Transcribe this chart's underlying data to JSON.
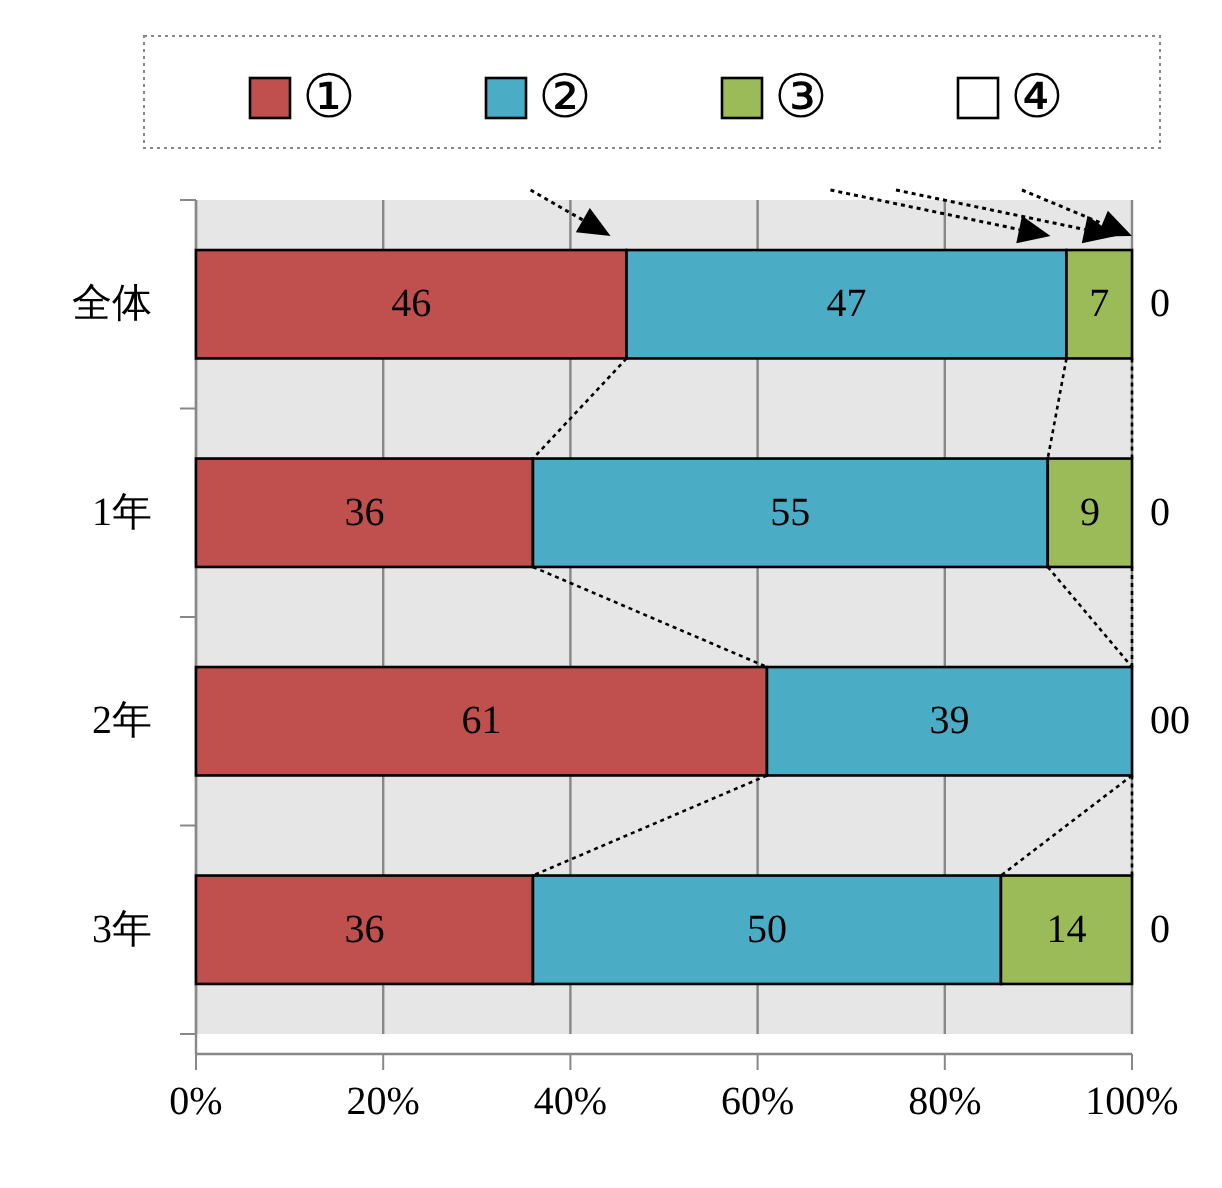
{
  "chart_data": {
    "type": "bar",
    "orientation": "horizontal",
    "stacked": true,
    "categories": [
      "全体",
      "1年",
      "2年",
      "3年"
    ],
    "series": [
      {
        "name": "①",
        "color": "#c0504d",
        "values": [
          46,
          36,
          61,
          36
        ]
      },
      {
        "name": "②",
        "color": "#4bacc6",
        "values": [
          47,
          55,
          39,
          50
        ]
      },
      {
        "name": "③",
        "color": "#9bbb59",
        "values": [
          7,
          9,
          0,
          14
        ]
      },
      {
        "name": "④",
        "color": "#ffffff",
        "values": [
          0,
          0,
          0,
          0
        ]
      }
    ],
    "xlim": [
      0,
      100
    ],
    "xticks": [
      {
        "value": 0,
        "label": "0%"
      },
      {
        "value": 20,
        "label": "20%"
      },
      {
        "value": 40,
        "label": "40%"
      },
      {
        "value": 60,
        "label": "60%"
      },
      {
        "value": 80,
        "label": "80%"
      },
      {
        "value": 100,
        "label": "100%"
      }
    ],
    "grid": "x",
    "legend": "top",
    "data_labels": true
  }
}
